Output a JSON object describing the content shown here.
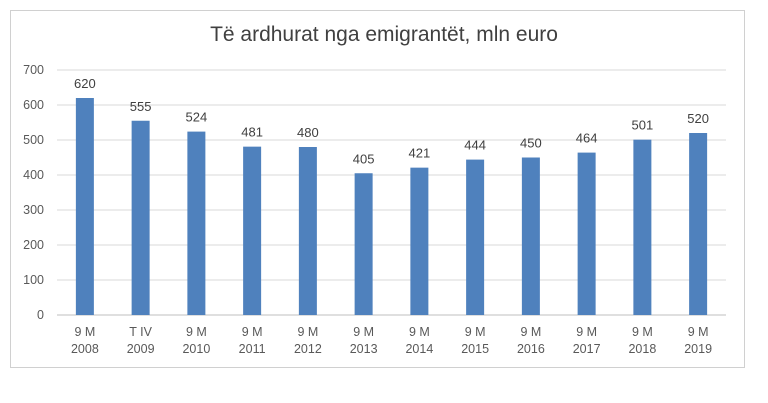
{
  "chart_data": {
    "type": "bar",
    "title": "Të ardhurat nga emigrantët, mln euro",
    "categories": [
      [
        "9 M",
        "2008"
      ],
      [
        "T IV",
        "2009"
      ],
      [
        "9 M",
        "2010"
      ],
      [
        "9 M",
        "2011"
      ],
      [
        "9 M",
        "2012"
      ],
      [
        "9 M",
        "2013"
      ],
      [
        "9 M",
        "2014"
      ],
      [
        "9 M",
        "2015"
      ],
      [
        "9 M",
        "2016"
      ],
      [
        "9 M",
        "2017"
      ],
      [
        "9 M",
        "2018"
      ],
      [
        "9 M",
        "2019"
      ]
    ],
    "values": [
      620,
      555,
      524,
      481,
      480,
      405,
      421,
      444,
      450,
      464,
      501,
      520
    ],
    "ylim": [
      0,
      700
    ],
    "yticks": [
      0,
      100,
      200,
      300,
      400,
      500,
      600,
      700
    ],
    "grid": true,
    "legend": "none",
    "bar_color": "#4f81bd",
    "grid_color": "#d9d9d9"
  }
}
